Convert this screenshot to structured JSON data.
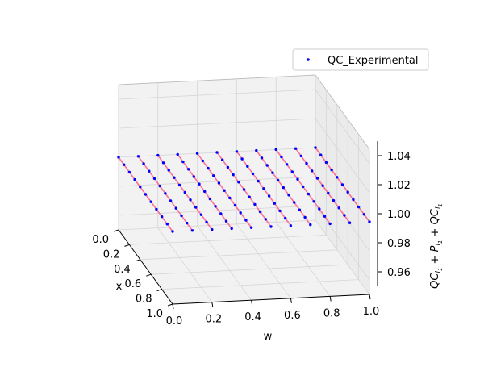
{
  "chart_data": {
    "type": "scatter",
    "projection": "3d",
    "title": "",
    "xlabel": "x",
    "ylabel": "w",
    "zlabel": "$QC_{l_1}+P_{l_1}+QC_{l_1}$",
    "zlabel_parts": {
      "main": "QC",
      "sub": "l",
      "subsub": "1",
      "plus": "+",
      "p": "P"
    },
    "xlim": [
      0.0,
      1.0
    ],
    "ylim": [
      0.0,
      1.0
    ],
    "zlim": [
      0.95,
      1.05
    ],
    "x_ticks": [
      "0.0",
      "0.2",
      "0.4",
      "0.6",
      "0.8",
      "1.0"
    ],
    "y_ticks": [
      "0.0",
      "0.2",
      "0.4",
      "0.6",
      "0.8",
      "1.0"
    ],
    "z_ticks": [
      "0.96",
      "0.98",
      "1.00",
      "1.02",
      "1.04"
    ],
    "grid": true,
    "legend_position": "top-right",
    "series": [
      {
        "name": "QC_Experimental",
        "marker_color": "#0000ff",
        "line_color": "#ff5a8a",
        "x": [
          0.0,
          0.1,
          0.2,
          0.3,
          0.4,
          0.5,
          0.6,
          0.7,
          0.8,
          0.9,
          1.0
        ],
        "w": [
          0.0,
          0.1,
          0.2,
          0.3,
          0.4,
          0.5,
          0.6,
          0.7,
          0.8,
          0.9,
          1.0
        ],
        "z_value": 1.0
      }
    ]
  }
}
